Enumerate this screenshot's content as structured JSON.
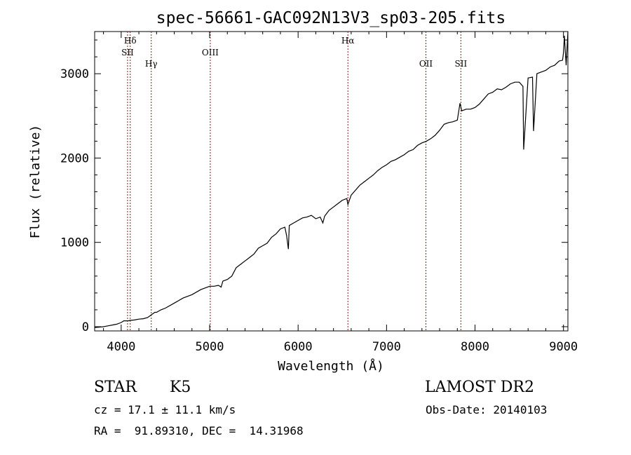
{
  "chart_data": {
    "type": "line",
    "title": "spec-56661-GAC092N13V3_sp03-205.fits",
    "xlabel": "Wavelength (Å)",
    "ylabel": "Flux (relative)",
    "xlim": [
      3700,
      9050
    ],
    "ylim": [
      -50,
      3500
    ],
    "xticks": [
      4000,
      5000,
      6000,
      7000,
      8000,
      9000
    ],
    "yticks": [
      0,
      1000,
      2000,
      3000
    ],
    "grid": false,
    "series": [
      {
        "x": [
          3700,
          3750,
          3800,
          3850,
          3900,
          3950,
          4000,
          4030,
          4080,
          4100,
          4150,
          4200,
          4250,
          4300,
          4340,
          4380,
          4400,
          4450,
          4500,
          4600,
          4700,
          4750,
          4800,
          4850,
          4900,
          4950,
          5000,
          5050,
          5100,
          5130,
          5150,
          5200,
          5250,
          5300,
          5350,
          5400,
          5450,
          5500,
          5550,
          5600,
          5650,
          5700,
          5750,
          5800,
          5850,
          5870,
          5890,
          5900,
          5950,
          6000,
          6050,
          6100,
          6150,
          6200,
          6250,
          6280,
          6300,
          6350,
          6400,
          6450,
          6500,
          6550,
          6563,
          6600,
          6650,
          6700,
          6750,
          6800,
          6850,
          6900,
          6950,
          7000,
          7050,
          7100,
          7150,
          7200,
          7250,
          7300,
          7350,
          7400,
          7450,
          7500,
          7550,
          7600,
          7650,
          7700,
          7750,
          7800,
          7830,
          7850,
          7900,
          7950,
          8000,
          8050,
          8100,
          8150,
          8200,
          8250,
          8300,
          8350,
          8400,
          8450,
          8500,
          8542,
          8550,
          8600,
          8650,
          8662,
          8700,
          8750,
          8800,
          8850,
          8900,
          8950,
          8990,
          9000,
          9010,
          9030,
          9050
        ],
        "values": [
          -10,
          -5,
          0,
          10,
          20,
          30,
          50,
          70,
          70,
          75,
          80,
          90,
          95,
          110,
          140,
          170,
          170,
          200,
          220,
          280,
          340,
          360,
          380,
          410,
          440,
          460,
          480,
          480,
          490,
          470,
          540,
          560,
          600,
          700,
          740,
          780,
          820,
          860,
          930,
          960,
          990,
          1060,
          1100,
          1160,
          1180,
          1080,
          920,
          1200,
          1230,
          1260,
          1290,
          1300,
          1320,
          1280,
          1300,
          1230,
          1310,
          1380,
          1420,
          1460,
          1500,
          1520,
          1450,
          1560,
          1620,
          1680,
          1720,
          1760,
          1800,
          1850,
          1890,
          1920,
          1960,
          1980,
          2010,
          2040,
          2080,
          2100,
          2150,
          2180,
          2200,
          2230,
          2270,
          2330,
          2400,
          2420,
          2430,
          2450,
          2650,
          2560,
          2580,
          2580,
          2600,
          2640,
          2700,
          2760,
          2780,
          2820,
          2810,
          2840,
          2880,
          2900,
          2900,
          2850,
          2100,
          2950,
          2960,
          2320,
          3000,
          3020,
          3040,
          3080,
          3100,
          3150,
          3160,
          3250,
          3450,
          3100,
          3500
        ]
      }
    ],
    "lines": [
      {
        "label": "Hδ",
        "x": 4102
      },
      {
        "label": "SII",
        "x": 4072
      },
      {
        "label": "Hγ",
        "x": 4340
      },
      {
        "label": "OIII",
        "x": 5007
      },
      {
        "label": "Hα",
        "x": 6563
      },
      {
        "label": "OII",
        "x": 7445
      },
      {
        "label": "SII",
        "x": 7840
      }
    ],
    "annotations": {
      "object_class": "STAR",
      "subclass": "K5",
      "survey": "LAMOST DR2",
      "redshift": "cz = 17.1 ± 11.1 km/s",
      "obs_date": "Obs-Date: 20140103",
      "coords": "RA =  91.89310, DEC =  14.31968"
    },
    "colors": {
      "spectrum": "#000000",
      "line_marker": "#8b1a1a"
    }
  }
}
